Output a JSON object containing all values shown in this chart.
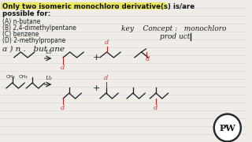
{
  "bg_color": "#f0ede8",
  "line_color": "#b8c4cc",
  "highlight_color": "#e8e830",
  "title_line1": "Only two isomeric monochloro derivative(s) is/are",
  "title_line2": "possible for:",
  "opt_a": "(A) n-butane",
  "opt_b": "(B) 2,4-dimethylpentane",
  "opt_c": "(C) benzene",
  "opt_d": "(D) 2-methylpropane",
  "key_text1": "key    Concept :   monochloro",
  "key_text2": "prod uct",
  "section_a": "a ) n .   but ane",
  "u2": "U₂",
  "cl": "cl",
  "plus": "+",
  "ch3": "CH₃",
  "dark_color": "#2a2a2a",
  "red_color": "#c02020",
  "pw_bg": "#2a2a2a",
  "pw_text": "#ffffff",
  "fs_title": 6.2,
  "fs_opt": 5.5,
  "fs_key": 6.5,
  "fs_label": 7.5,
  "fs_small": 5.0
}
